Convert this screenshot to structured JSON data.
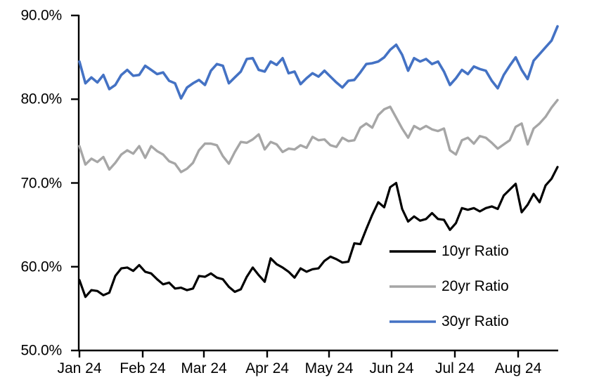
{
  "chart_data": {
    "type": "line",
    "title": "",
    "y_axis": {
      "unit": "%",
      "min": 50,
      "max": 90,
      "tick_labels": [
        "90.0%",
        "80.0%",
        "70.0%",
        "60.0%",
        "50.0%"
      ]
    },
    "x_axis": {
      "tick_labels": [
        "Jan 24",
        "Feb 24",
        "Mar 24",
        "Apr 24",
        "May 24",
        "Jun 24",
        "Jul 24",
        "Aug 24"
      ],
      "range": "Jan 2024 through late Aug 2024, daily observations"
    },
    "legend": {
      "position": "inside lower right",
      "entries": [
        "10yr Ratio",
        "20yr Ratio",
        "30yr Ratio"
      ]
    },
    "series": [
      {
        "name": "10yr Ratio",
        "color": "#000000",
        "values": [
          58.4,
          56.4,
          57.2,
          57.1,
          56.6,
          56.9,
          58.9,
          59.8,
          59.9,
          59.5,
          60.2,
          59.4,
          59.2,
          58.5,
          57.9,
          58.1,
          57.4,
          57.5,
          57.2,
          57.4,
          58.9,
          58.8,
          59.2,
          58.7,
          58.5,
          57.6,
          57.0,
          57.3,
          58.8,
          59.9,
          59.0,
          58.2,
          61.0,
          60.3,
          59.9,
          59.4,
          58.7,
          59.8,
          59.4,
          59.7,
          59.8,
          60.7,
          61.2,
          60.9,
          60.5,
          60.6,
          62.8,
          62.7,
          64.5,
          66.2,
          67.7,
          67.1,
          69.5,
          70.0,
          66.9,
          65.4,
          66.0,
          65.5,
          65.7,
          66.4,
          65.7,
          65.6,
          64.4,
          65.2,
          67.0,
          66.8,
          67.0,
          66.6,
          67.0,
          67.2,
          66.9,
          68.5,
          69.2,
          69.9,
          66.5,
          67.4,
          68.7,
          67.7,
          69.7,
          70.5,
          71.9
        ]
      },
      {
        "name": "20yr Ratio",
        "color": "#A6A6A6",
        "values": [
          74.4,
          72.2,
          72.9,
          72.5,
          73.1,
          71.6,
          72.4,
          73.4,
          73.9,
          73.5,
          74.4,
          73.0,
          74.4,
          73.8,
          73.4,
          72.6,
          72.3,
          71.3,
          71.7,
          72.4,
          73.9,
          74.7,
          74.7,
          74.5,
          73.2,
          72.3,
          73.7,
          74.9,
          74.8,
          75.2,
          75.8,
          74.0,
          74.9,
          74.6,
          73.7,
          74.1,
          74.0,
          74.5,
          74.2,
          75.5,
          75.1,
          75.2,
          74.5,
          74.3,
          75.4,
          75.0,
          75.1,
          76.6,
          77.1,
          76.6,
          78.1,
          78.8,
          79.1,
          77.8,
          76.5,
          75.4,
          76.8,
          76.4,
          76.8,
          76.4,
          76.2,
          76.5,
          73.9,
          73.4,
          75.1,
          75.4,
          74.7,
          75.6,
          75.4,
          74.8,
          74.1,
          74.6,
          75.1,
          76.7,
          77.1,
          74.6,
          76.5,
          77.1,
          77.9,
          79.0,
          79.9
        ]
      },
      {
        "name": "30yr Ratio",
        "color": "#4472C4",
        "values": [
          84.5,
          81.9,
          82.6,
          82.0,
          82.9,
          81.2,
          81.7,
          82.9,
          83.5,
          82.8,
          82.9,
          84.0,
          83.5,
          83.0,
          83.2,
          82.2,
          81.9,
          80.1,
          81.4,
          81.9,
          82.3,
          81.7,
          83.4,
          84.2,
          84.0,
          81.9,
          82.6,
          83.3,
          84.8,
          84.9,
          83.5,
          83.3,
          84.5,
          84.1,
          84.9,
          83.1,
          83.3,
          81.8,
          82.5,
          83.1,
          82.7,
          83.4,
          82.7,
          82.0,
          81.4,
          82.2,
          82.3,
          83.2,
          84.2,
          84.3,
          84.5,
          85.0,
          85.9,
          86.5,
          85.3,
          83.4,
          84.9,
          84.5,
          84.8,
          84.2,
          84.5,
          83.3,
          81.7,
          82.5,
          83.5,
          83.0,
          83.9,
          83.6,
          83.4,
          82.2,
          81.3,
          82.9,
          84.0,
          85.0,
          83.5,
          82.4,
          84.6,
          85.4,
          86.2,
          87.0,
          88.7
        ]
      }
    ]
  }
}
